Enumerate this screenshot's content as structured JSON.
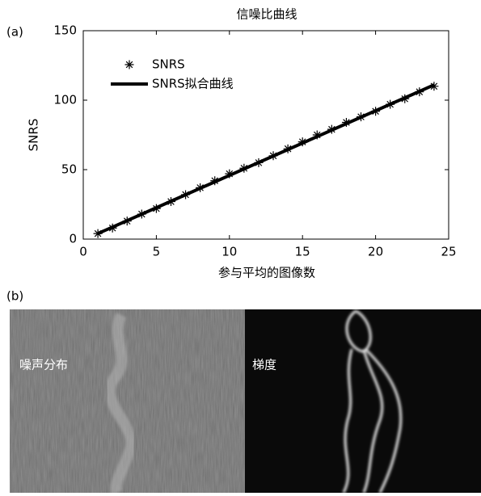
{
  "chart_data": {
    "type": "scatter",
    "title": "信噪比曲线",
    "x_label": "参与平均的图像数",
    "y_label": "SNRS",
    "xlim": [
      0,
      25
    ],
    "xticks": [
      0,
      5,
      10,
      15,
      20,
      25
    ],
    "ylim": [
      0,
      150
    ],
    "yticks": [
      0,
      50,
      100,
      150
    ],
    "legend": "upper left",
    "series": [
      {
        "name": "SNRS",
        "type": "scatter",
        "color": "#000000",
        "x": [
          1,
          2,
          3,
          4,
          5,
          6,
          7,
          8,
          9,
          10,
          11,
          12,
          13,
          14,
          15,
          16,
          17,
          18,
          19,
          20,
          21,
          22,
          23,
          24
        ],
        "values": [
          4,
          8,
          13,
          18,
          22,
          27,
          32,
          37,
          42,
          47,
          51,
          55,
          60,
          65,
          70,
          75,
          79,
          84,
          88,
          92,
          97,
          101,
          106,
          110
        ]
      },
      {
        "name": "SNRS拟合曲线",
        "type": "line",
        "color": "#000000",
        "x": [
          1,
          24
        ],
        "values": [
          4,
          111
        ]
      }
    ]
  },
  "panel_labels": [
    "(a)",
    "(b)"
  ],
  "image_labels": [
    "噪声分布",
    "梯度"
  ]
}
